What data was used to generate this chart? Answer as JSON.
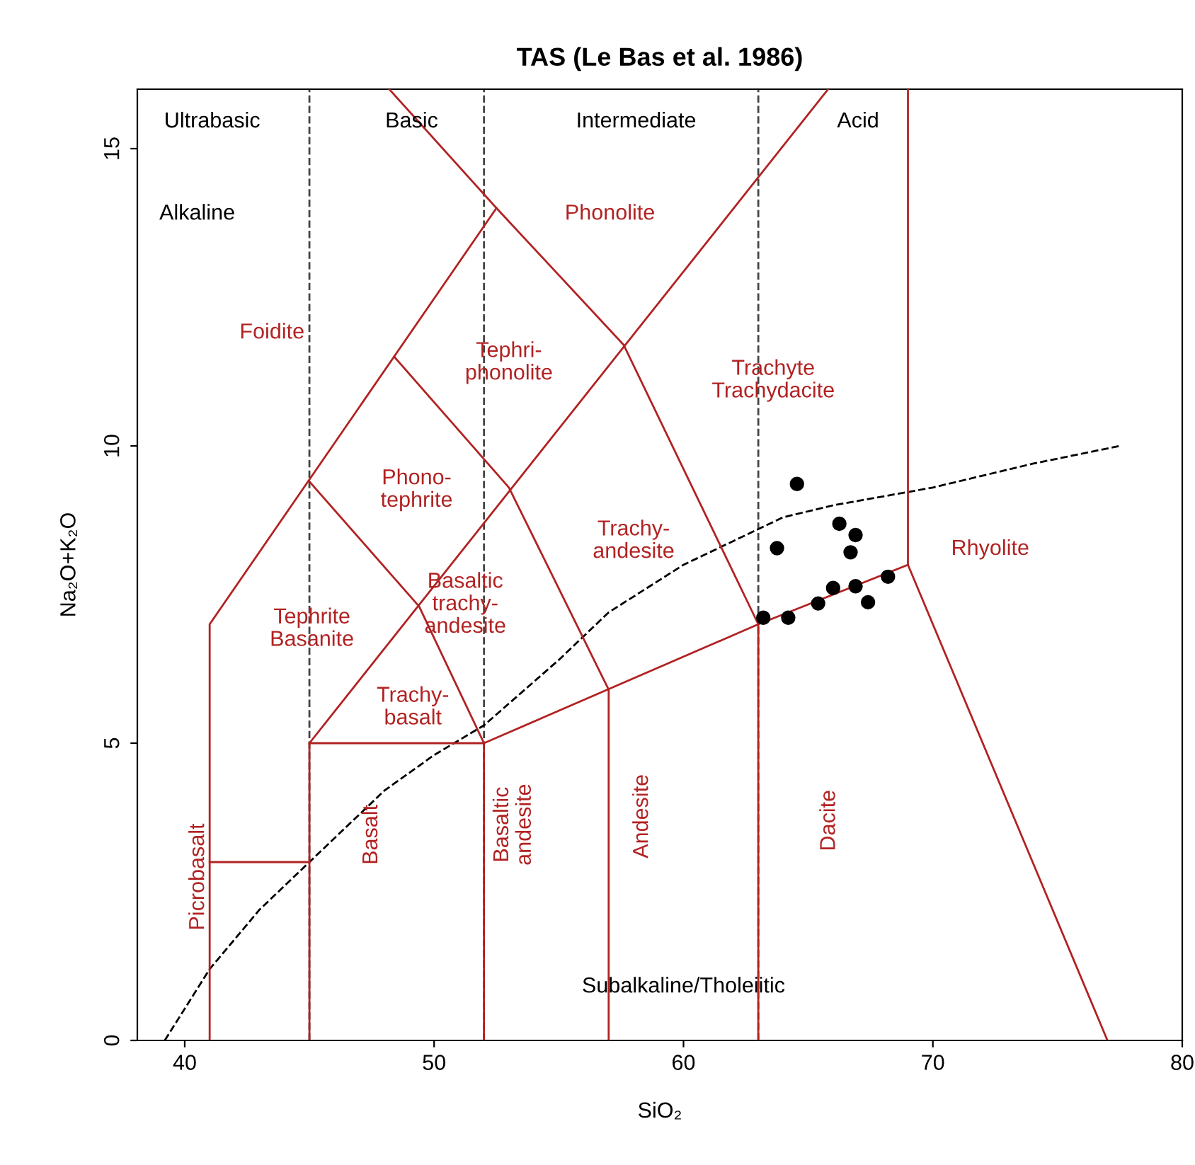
{
  "chart_data": {
    "type": "scatter",
    "title": "TAS (Le Bas et al. 1986)",
    "xlabel": "SiO₂",
    "ylabel": "Na₂O+K₂O",
    "xlim": [
      38.1,
      80
    ],
    "ylim": [
      0,
      16
    ],
    "xticks": [
      40,
      50,
      60,
      70,
      80
    ],
    "yticks": [
      0,
      5,
      10,
      15
    ],
    "grid": false,
    "legend": false,
    "series": [
      {
        "color": "#000000",
        "marker": "circle",
        "x": [
          64.55,
          66.25,
          66.9,
          63.75,
          66.7,
          68.2,
          66.9,
          66.0,
          67.4,
          65.4,
          64.2,
          63.2
        ],
        "values": [
          9.36,
          8.69,
          8.5,
          8.28,
          8.21,
          7.8,
          7.64,
          7.61,
          7.37,
          7.35,
          7.11,
          7.11
        ]
      },
      {
        "type": "line",
        "color": "#000000",
        "line_style": "dashed",
        "x": [
          39.2,
          41,
          43,
          45,
          48,
          50,
          52,
          55,
          57,
          60,
          62,
          63,
          64,
          66,
          70,
          74,
          77.5
        ],
        "values": [
          0,
          1.2,
          2.2,
          3.0,
          4.2,
          4.8,
          5.3,
          6.4,
          7.2,
          8.0,
          8.4,
          8.6,
          8.8,
          9.0,
          9.3,
          9.7,
          10.0
        ]
      },
      {
        "type": "line",
        "color": "#b22222",
        "x": [
          41,
          41,
          52.5,
          48.2
        ],
        "values": [
          0,
          7,
          14,
          16
        ]
      },
      {
        "type": "line",
        "color": "#b22222",
        "x": [
          41,
          45
        ],
        "values": [
          3,
          3
        ]
      },
      {
        "type": "line",
        "color": "#b22222",
        "x": [
          45,
          45,
          65.8
        ],
        "values": [
          0,
          5,
          16
        ]
      },
      {
        "type": "line",
        "color": "#b22222",
        "x": [
          45,
          52,
          52
        ],
        "values": [
          5,
          5,
          0
        ]
      },
      {
        "type": "line",
        "color": "#b22222",
        "x": [
          52,
          63,
          69,
          77
        ],
        "values": [
          5,
          7,
          8,
          0
        ]
      },
      {
        "type": "line",
        "color": "#b22222",
        "x": [
          57,
          57,
          53,
          48.4
        ],
        "values": [
          0,
          5.9,
          9.3,
          11.5
        ]
      },
      {
        "type": "line",
        "color": "#b22222",
        "x": [
          63,
          63,
          57.6,
          52.5
        ],
        "values": [
          0,
          7,
          11.7,
          14
        ]
      },
      {
        "type": "line",
        "color": "#b22222",
        "x": [
          45,
          49.4,
          52
        ],
        "values": [
          9.4,
          7.3,
          5
        ]
      },
      {
        "type": "line",
        "color": "#b22222",
        "x": [
          69,
          69
        ],
        "values": [
          8,
          16
        ]
      }
    ],
    "ref_lines": [
      {
        "axis": "x",
        "value": 45,
        "color": "#444444",
        "line_style": "dashed"
      },
      {
        "axis": "x",
        "value": 52,
        "color": "#444444",
        "line_style": "dashed"
      },
      {
        "axis": "x",
        "value": 63,
        "color": "#444444",
        "line_style": "dashed"
      }
    ],
    "annotations": [
      "Ultrabasic",
      "Basic",
      "Intermediate",
      "Acid",
      "Alkaline",
      "Subalkaline/Tholeiitic",
      "Phonolite",
      "Foidite",
      "Tephri-\nphonolite",
      "Trachyte\nTrachydacite",
      "Phono-\ntephrite",
      "Trachy-\nandesite",
      "Rhyolite",
      "Tephrite\nBasanite",
      "Basaltic\ntrachy-\nandesite",
      "Trachy-\nbasalt",
      "Picrobasalt",
      "Basalt",
      "Basaltic\nandesite",
      "Andesite",
      "Dacite"
    ]
  }
}
